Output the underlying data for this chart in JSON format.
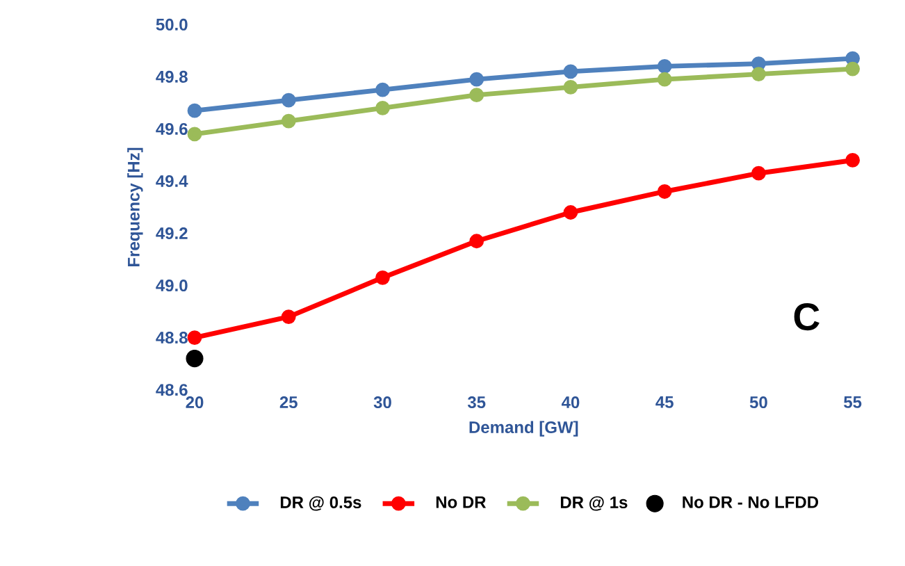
{
  "chart_data": {
    "type": "line",
    "xlabel": "Demand  [GW]",
    "ylabel": "Frequency  [Hz]",
    "x": [
      20,
      25,
      30,
      35,
      40,
      45,
      50,
      55
    ],
    "xlim": [
      20,
      55
    ],
    "xticks": [
      20,
      25,
      30,
      35,
      40,
      45,
      50,
      55
    ],
    "ylim": [
      48.6,
      50.0
    ],
    "yticks": [
      {
        "value": 48.6,
        "label": "48.6"
      },
      {
        "value": 48.8,
        "label": "48.8"
      },
      {
        "value": 49.0,
        "label": "49.0"
      },
      {
        "value": 49.2,
        "label": "49.2"
      },
      {
        "value": 49.4,
        "label": "49.4"
      },
      {
        "value": 49.6,
        "label": "49.6"
      },
      {
        "value": 49.8,
        "label": "49.8"
      },
      {
        "value": 50.0,
        "label": "50.0"
      }
    ],
    "marker": "circle",
    "legend": "bottom",
    "annotations": [
      "C"
    ],
    "series": [
      {
        "name": "DR @ 0.5s",
        "color": "#4f81bd",
        "values": [
          49.67,
          49.71,
          49.75,
          49.79,
          49.82,
          49.84,
          49.85,
          49.87
        ]
      },
      {
        "name": "No DR",
        "color": "#ff0000",
        "values": [
          48.8,
          48.88,
          49.03,
          49.17,
          49.28,
          49.36,
          49.43,
          49.48
        ]
      },
      {
        "name": "DR @ 1s",
        "color": "#9bbb59",
        "values": [
          49.58,
          49.63,
          49.68,
          49.73,
          49.76,
          49.79,
          49.81,
          49.83
        ]
      },
      {
        "name": "No DR - No LFDD",
        "color": "#000000",
        "type": "scatter",
        "x": [
          20
        ],
        "values": [
          48.72
        ]
      }
    ]
  }
}
